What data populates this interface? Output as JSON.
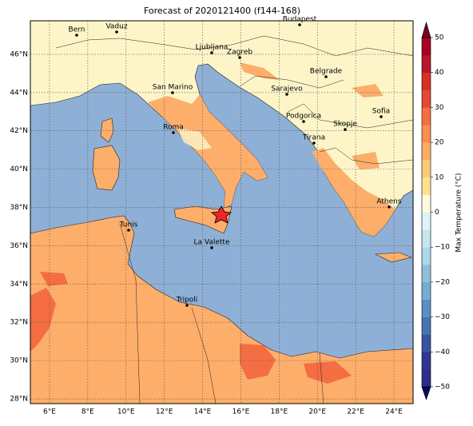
{
  "title": "Forecast of 2020121400 (f144-168)",
  "map": {
    "lon_range": [
      5,
      25
    ],
    "lat_range": [
      27.75,
      47.75
    ],
    "lon_ticks": [
      {
        "value": 6,
        "label": "6°E"
      },
      {
        "value": 8,
        "label": "8°E"
      },
      {
        "value": 10,
        "label": "10°E"
      },
      {
        "value": 12,
        "label": "12°E"
      },
      {
        "value": 14,
        "label": "14°E"
      },
      {
        "value": 16,
        "label": "16°E"
      },
      {
        "value": 18,
        "label": "18°E"
      },
      {
        "value": 20,
        "label": "20°E"
      },
      {
        "value": 22,
        "label": "22°E"
      },
      {
        "value": 24,
        "label": "24°E"
      }
    ],
    "lat_ticks": [
      {
        "value": 28,
        "label": "28°N"
      },
      {
        "value": 30,
        "label": "30°N"
      },
      {
        "value": 32,
        "label": "32°N"
      },
      {
        "value": 34,
        "label": "34°N"
      },
      {
        "value": 36,
        "label": "36°N"
      },
      {
        "value": 38,
        "label": "38°N"
      },
      {
        "value": 40,
        "label": "40°N"
      },
      {
        "value": 42,
        "label": "42°N"
      },
      {
        "value": 44,
        "label": "44°N"
      },
      {
        "value": 46,
        "label": "46°N"
      }
    ],
    "grid": true,
    "cities": [
      "Bern",
      "Vaduz",
      "Budapest",
      "Ljubljana",
      "Zagreb",
      "Belgrade",
      "San Marino",
      "Sarajevo",
      "Sofia",
      "Roma",
      "Podgorica",
      "Skopje",
      "Tirana",
      "Athens",
      "Tunis",
      "La Valette",
      "Tripoli"
    ]
  },
  "colorbar": {
    "label": "Max Temperature (°C)",
    "range": [
      -50,
      50
    ],
    "ticks": [
      {
        "value": -50,
        "label": "−50"
      },
      {
        "value": -40,
        "label": "−40"
      },
      {
        "value": -30,
        "label": "−30"
      },
      {
        "value": -20,
        "label": "−20"
      },
      {
        "value": -10,
        "label": "−10"
      },
      0,
      10,
      20,
      30,
      40,
      50
    ],
    "colors": [
      "#2b2f8a",
      "#313695",
      "#3a54a4",
      "#4575b4",
      "#5b8fc3",
      "#74add1",
      "#91bfdb",
      "#abd9e9",
      "#c6e6f1",
      "#e0f3f8",
      "#fefadf",
      "#fee090",
      "#fdc97a",
      "#fdae61",
      "#f98e52",
      "#f46d43",
      "#e34a33",
      "#d73027",
      "#b8172a",
      "#a50026"
    ]
  }
}
